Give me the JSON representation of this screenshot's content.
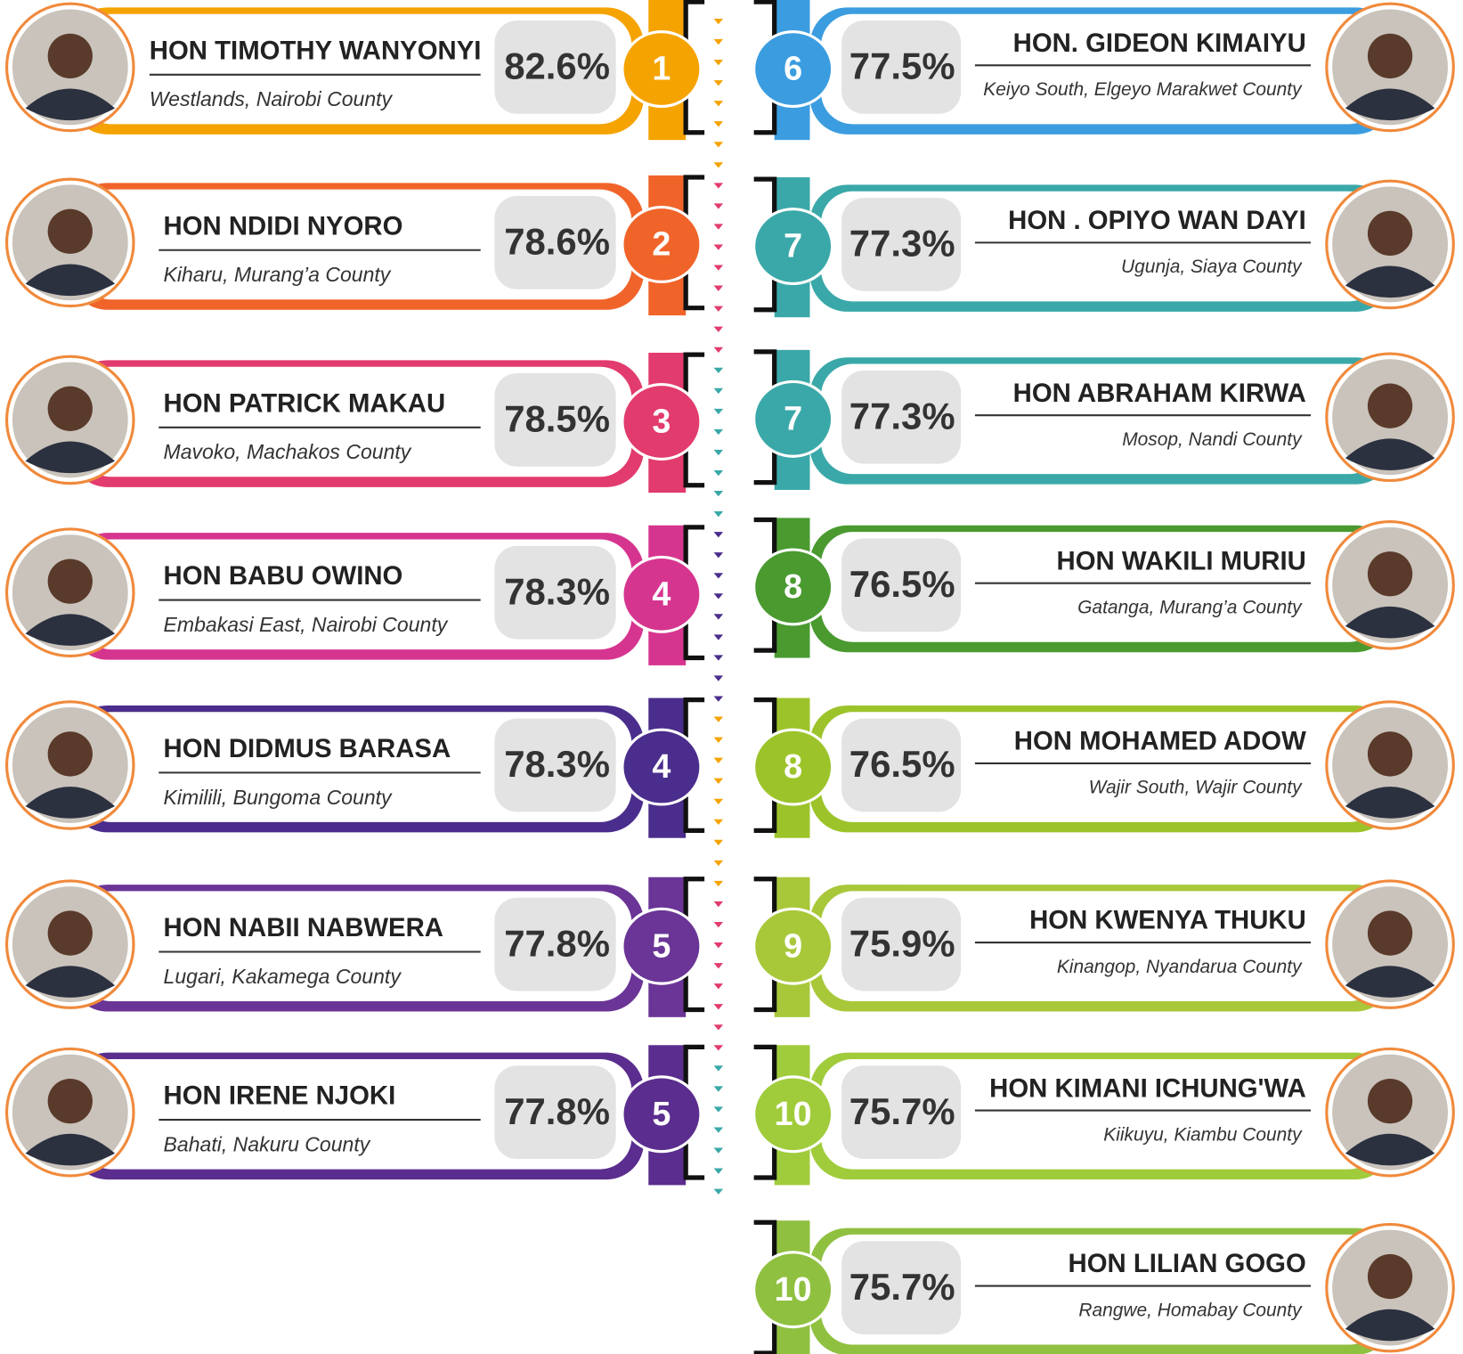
{
  "left": [
    {
      "rank": "1",
      "score": "82.6%",
      "name": "HON TIMOTHY WANYONYI",
      "location": "Westlands, Nairobi County"
    },
    {
      "rank": "2",
      "score": "78.6%",
      "name": "HON NDIDI NYORO",
      "location": "Kiharu, Murang’a County"
    },
    {
      "rank": "3",
      "score": "78.5%",
      "name": "HON PATRICK MAKAU",
      "location": "Mavoko, Machakos County"
    },
    {
      "rank": "4",
      "score": "78.3%",
      "name": "HON BABU OWINO",
      "location": "Embakasi East, Nairobi County"
    },
    {
      "rank": "4",
      "score": "78.3%",
      "name": "HON DIDMUS BARASA",
      "location": "Kimilili, Bungoma County"
    },
    {
      "rank": "5",
      "score": "77.8%",
      "name": "HON NABII NABWERA",
      "location": "Lugari, Kakamega County"
    },
    {
      "rank": "5",
      "score": "77.8%",
      "name": "HON IRENE NJOKI",
      "location": "Bahati, Nakuru County"
    }
  ],
  "right": [
    {
      "rank": "6",
      "score": "77.5%",
      "name": "HON. GIDEON KIMAIYU",
      "location": "Keiyo South, Elgeyo Marakwet County"
    },
    {
      "rank": "7",
      "score": "77.3%",
      "name": "HON . OPIYO WAN DAYI",
      "location": "Ugunja, Siaya County"
    },
    {
      "rank": "7",
      "score": "77.3%",
      "name": "HON ABRAHAM KIRWA",
      "location": "Mosop, Nandi County"
    },
    {
      "rank": "8",
      "score": "76.5%",
      "name": "HON WAKILI MURIU",
      "location": "Gatanga, Murang’a County"
    },
    {
      "rank": "8",
      "score": "76.5%",
      "name": "HON MOHAMED ADOW",
      "location": "Wajir South, Wajir County"
    },
    {
      "rank": "9",
      "score": "75.9%",
      "name": "HON KWENYA THUKU",
      "location": "Kinangop, Nyandarua County"
    },
    {
      "rank": "10",
      "score": "75.7%",
      "name": "HON KIMANI ICHUNG'WA",
      "location": "Kiikuyu, Kiambu County"
    },
    {
      "rank": "10",
      "score": "75.7%",
      "name": "HON LILIAN GOGO",
      "location": "Rangwe, Homabay County"
    }
  ]
}
